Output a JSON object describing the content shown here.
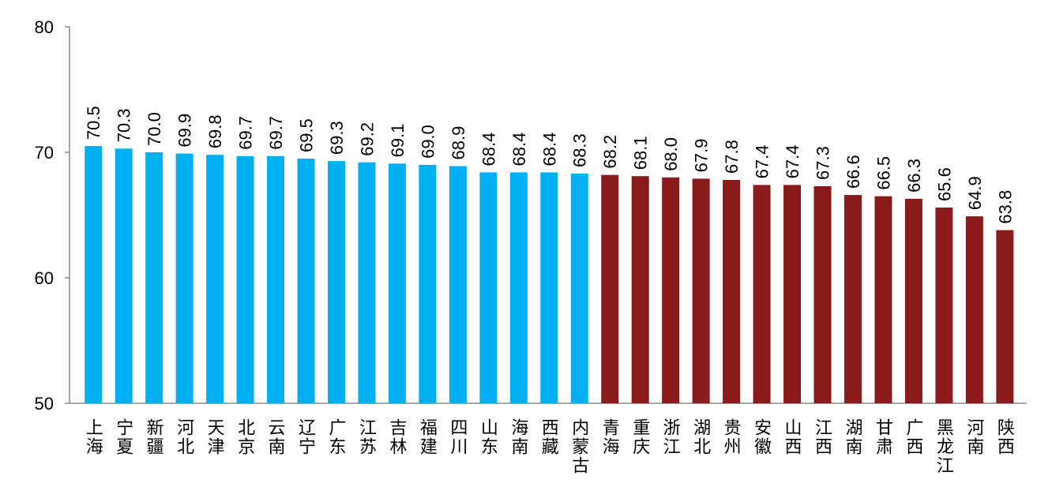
{
  "chart_data": {
    "type": "bar",
    "categories": [
      "上海",
      "宁夏",
      "新疆",
      "河北",
      "天津",
      "北京",
      "云南",
      "辽宁",
      "广东",
      "江苏",
      "吉林",
      "福建",
      "四川",
      "山东",
      "海南",
      "西藏",
      "内蒙古",
      "青海",
      "重庆",
      "浙江",
      "湖北",
      "贵州",
      "安徽",
      "山西",
      "江西",
      "湖南",
      "甘肃",
      "广西",
      "黑龙江",
      "河南",
      "陕西"
    ],
    "values": [
      70.5,
      70.3,
      70.0,
      69.9,
      69.8,
      69.7,
      69.7,
      69.5,
      69.3,
      69.2,
      69.1,
      69.0,
      68.9,
      68.4,
      68.4,
      68.4,
      68.3,
      68.2,
      68.1,
      68.0,
      67.9,
      67.8,
      67.4,
      67.4,
      67.3,
      66.6,
      66.5,
      66.3,
      65.6,
      64.9,
      63.8
    ],
    "value_labels": [
      "70.5",
      "70.3",
      "70.0",
      "69.9",
      "69.8",
      "69.7",
      "69.7",
      "69.5",
      "69.3",
      "69.2",
      "69.1",
      "69.0",
      "68.9",
      "68.4",
      "68.4",
      "68.4",
      "68.3",
      "68.2",
      "68.1",
      "68.0",
      "67.9",
      "67.8",
      "67.4",
      "67.4",
      "67.3",
      "66.6",
      "66.5",
      "66.3",
      "65.6",
      "64.9",
      "63.8"
    ],
    "colors": [
      "#00b0f0",
      "#00b0f0",
      "#00b0f0",
      "#00b0f0",
      "#00b0f0",
      "#00b0f0",
      "#00b0f0",
      "#00b0f0",
      "#00b0f0",
      "#00b0f0",
      "#00b0f0",
      "#00b0f0",
      "#00b0f0",
      "#00b0f0",
      "#00b0f0",
      "#00b0f0",
      "#00b0f0",
      "#8b1a1a",
      "#8b1a1a",
      "#8b1a1a",
      "#8b1a1a",
      "#8b1a1a",
      "#8b1a1a",
      "#8b1a1a",
      "#8b1a1a",
      "#8b1a1a",
      "#8b1a1a",
      "#8b1a1a",
      "#8b1a1a",
      "#8b1a1a",
      "#8b1a1a"
    ],
    "ylim": [
      50,
      80
    ],
    "yticks": [
      50,
      60,
      70,
      80
    ],
    "grid": false
  }
}
